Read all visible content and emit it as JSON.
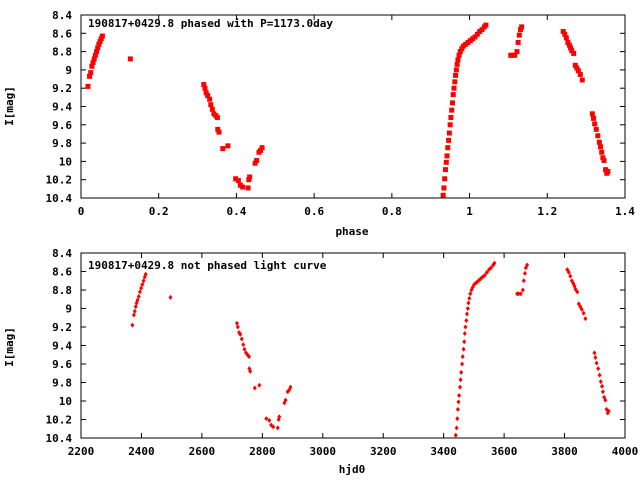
{
  "chart_data": [
    {
      "type": "scatter",
      "title": "190817+0429.8 phased with P=1173.0day",
      "xlabel": "phase",
      "ylabel": "I[mag]",
      "xlim": [
        0,
        1.4
      ],
      "ylim": [
        10.4,
        8.4
      ],
      "y_inverted": true,
      "grid": false,
      "marker_color": "#ff0000",
      "marker": "square",
      "x_ticks": [
        0,
        0.2,
        0.4,
        0.6,
        0.8,
        1,
        1.2,
        1.4
      ],
      "x_tick_labels": [
        "0",
        "0.2",
        "0.4",
        "0.6",
        "0.8",
        "1",
        "1.2",
        "1.4"
      ],
      "y_ticks": [
        8.4,
        8.6,
        8.8,
        9,
        9.2,
        9.4,
        9.6,
        9.8,
        10,
        10.2,
        10.4
      ],
      "y_tick_labels": [
        "8.4",
        "8.6",
        "8.8",
        "9",
        "9.2",
        "9.4",
        "9.6",
        "9.8",
        "10",
        "10.2",
        "10.4"
      ],
      "series": [
        {
          "points": [
            [
              0.018,
              9.18
            ],
            [
              0.022,
              9.07
            ],
            [
              0.025,
              9.03
            ],
            [
              0.028,
              8.96
            ],
            [
              0.031,
              8.92
            ],
            [
              0.034,
              8.88
            ],
            [
              0.037,
              8.84
            ],
            [
              0.04,
              8.8
            ],
            [
              0.043,
              8.76
            ],
            [
              0.046,
              8.72
            ],
            [
              0.049,
              8.69
            ],
            [
              0.052,
              8.66
            ],
            [
              0.055,
              8.63
            ],
            [
              0.127,
              8.88
            ],
            [
              0.316,
              9.16
            ],
            [
              0.319,
              9.2
            ],
            [
              0.322,
              9.25
            ],
            [
              0.326,
              9.28
            ],
            [
              0.331,
              9.32
            ],
            [
              0.334,
              9.38
            ],
            [
              0.338,
              9.43
            ],
            [
              0.342,
              9.48
            ],
            [
              0.347,
              9.5
            ],
            [
              0.351,
              9.52
            ],
            [
              0.352,
              9.65
            ],
            [
              0.355,
              9.68
            ],
            [
              0.365,
              9.86
            ],
            [
              0.378,
              9.83
            ],
            [
              0.398,
              10.19
            ],
            [
              0.405,
              10.21
            ],
            [
              0.41,
              10.26
            ],
            [
              0.416,
              10.28
            ],
            [
              0.43,
              10.29
            ],
            [
              0.432,
              10.2
            ],
            [
              0.434,
              10.17
            ],
            [
              0.448,
              10.02
            ],
            [
              0.452,
              9.99
            ],
            [
              0.458,
              9.9
            ],
            [
              0.462,
              9.88
            ],
            [
              0.466,
              9.85
            ],
            [
              0.932,
              10.37
            ],
            [
              0.934,
              10.29
            ],
            [
              0.936,
              10.19
            ],
            [
              0.938,
              10.09
            ],
            [
              0.94,
              10.01
            ],
            [
              0.942,
              9.94
            ],
            [
              0.944,
              9.85
            ],
            [
              0.946,
              9.77
            ],
            [
              0.948,
              9.69
            ],
            [
              0.95,
              9.6
            ],
            [
              0.952,
              9.52
            ],
            [
              0.954,
              9.44
            ],
            [
              0.956,
              9.36
            ],
            [
              0.958,
              9.27
            ],
            [
              0.96,
              9.2
            ],
            [
              0.962,
              9.13
            ],
            [
              0.964,
              9.06
            ],
            [
              0.966,
              9.0
            ],
            [
              0.968,
              8.94
            ],
            [
              0.97,
              8.89
            ],
            [
              0.973,
              8.84
            ],
            [
              0.976,
              8.8
            ],
            [
              0.98,
              8.77
            ],
            [
              0.984,
              8.74
            ],
            [
              0.99,
              8.72
            ],
            [
              0.996,
              8.7
            ],
            [
              1.002,
              8.68
            ],
            [
              1.008,
              8.66
            ],
            [
              1.014,
              8.64
            ],
            [
              1.02,
              8.61
            ],
            [
              1.026,
              8.58
            ],
            [
              1.032,
              8.56
            ],
            [
              1.038,
              8.53
            ],
            [
              1.042,
              8.51
            ],
            [
              1.106,
              8.84
            ],
            [
              1.11,
              8.84
            ],
            [
              1.116,
              8.84
            ],
            [
              1.122,
              8.8
            ],
            [
              1.125,
              8.7
            ],
            [
              1.128,
              8.62
            ],
            [
              1.131,
              8.56
            ],
            [
              1.134,
              8.53
            ],
            [
              1.241,
              8.58
            ],
            [
              1.245,
              8.61
            ],
            [
              1.249,
              8.65
            ],
            [
              1.253,
              8.7
            ],
            [
              1.257,
              8.73
            ],
            [
              1.26,
              8.76
            ],
            [
              1.263,
              8.79
            ],
            [
              1.268,
              8.82
            ],
            [
              1.272,
              8.95
            ],
            [
              1.276,
              8.98
            ],
            [
              1.28,
              9.01
            ],
            [
              1.285,
              9.05
            ],
            [
              1.29,
              9.11
            ],
            [
              1.316,
              9.48
            ],
            [
              1.319,
              9.53
            ],
            [
              1.322,
              9.59
            ],
            [
              1.326,
              9.65
            ],
            [
              1.33,
              9.72
            ],
            [
              1.334,
              9.79
            ],
            [
              1.337,
              9.84
            ],
            [
              1.34,
              9.9
            ],
            [
              1.343,
              9.96
            ],
            [
              1.346,
              9.99
            ],
            [
              1.35,
              10.09
            ],
            [
              1.353,
              10.13
            ],
            [
              1.356,
              10.11
            ]
          ]
        }
      ]
    },
    {
      "type": "scatter",
      "title": "190817+0429.8 not phased light curve",
      "xlabel": "hjd0",
      "ylabel": "I[mag]",
      "xlim": [
        2200,
        4000
      ],
      "ylim": [
        10.4,
        8.4
      ],
      "y_inverted": true,
      "grid": false,
      "marker_color": "#ff0000",
      "marker": "diamond",
      "x_ticks": [
        2200,
        2400,
        2600,
        2800,
        3000,
        3200,
        3400,
        3600,
        3800,
        4000
      ],
      "x_tick_labels": [
        "2200",
        "2400",
        "2600",
        "2800",
        "3000",
        "3200",
        "3400",
        "3600",
        "3800",
        "4000"
      ],
      "y_ticks": [
        8.4,
        8.6,
        8.8,
        9,
        9.2,
        9.4,
        9.6,
        9.8,
        10,
        10.2,
        10.4
      ],
      "y_tick_labels": [
        "8.4",
        "8.6",
        "8.8",
        "9",
        "9.2",
        "9.4",
        "9.6",
        "9.8",
        "10",
        "10.2",
        "10.4"
      ],
      "series": [
        {
          "points": [
            [
              2370,
              9.18
            ],
            [
              2375,
              9.07
            ],
            [
              2378,
              9.03
            ],
            [
              2381,
              8.98
            ],
            [
              2384,
              8.94
            ],
            [
              2387,
              8.91
            ],
            [
              2391,
              8.87
            ],
            [
              2395,
              8.82
            ],
            [
              2399,
              8.78
            ],
            [
              2403,
              8.74
            ],
            [
              2407,
              8.7
            ],
            [
              2411,
              8.66
            ],
            [
              2414,
              8.63
            ],
            [
              2496,
              8.88
            ],
            [
              2716,
              9.16
            ],
            [
              2719,
              9.2
            ],
            [
              2723,
              9.26
            ],
            [
              2727,
              9.28
            ],
            [
              2732,
              9.33
            ],
            [
              2737,
              9.39
            ],
            [
              2741,
              9.44
            ],
            [
              2746,
              9.48
            ],
            [
              2751,
              9.5
            ],
            [
              2756,
              9.52
            ],
            [
              2757,
              9.65
            ],
            [
              2760,
              9.68
            ],
            [
              2775,
              9.86
            ],
            [
              2790,
              9.83
            ],
            [
              2813,
              10.19
            ],
            [
              2823,
              10.21
            ],
            [
              2829,
              10.26
            ],
            [
              2836,
              10.28
            ],
            [
              2851,
              10.29
            ],
            [
              2854,
              10.2
            ],
            [
              2856,
              10.17
            ],
            [
              2873,
              10.02
            ],
            [
              2877,
              9.99
            ],
            [
              2884,
              9.9
            ],
            [
              2889,
              9.88
            ],
            [
              2893,
              9.85
            ],
            [
              3440,
              10.37
            ],
            [
              3443,
              10.29
            ],
            [
              3445,
              10.19
            ],
            [
              3447,
              10.09
            ],
            [
              3449,
              10.01
            ],
            [
              3451,
              9.94
            ],
            [
              3454,
              9.85
            ],
            [
              3456,
              9.77
            ],
            [
              3458,
              9.69
            ],
            [
              3461,
              9.6
            ],
            [
              3463,
              9.52
            ],
            [
              3466,
              9.44
            ],
            [
              3468,
              9.36
            ],
            [
              3470,
              9.27
            ],
            [
              3472,
              9.2
            ],
            [
              3475,
              9.13
            ],
            [
              3477,
              9.06
            ],
            [
              3480,
              9.0
            ],
            [
              3482,
              8.94
            ],
            [
              3485,
              8.89
            ],
            [
              3488,
              8.84
            ],
            [
              3492,
              8.8
            ],
            [
              3496,
              8.77
            ],
            [
              3501,
              8.74
            ],
            [
              3508,
              8.72
            ],
            [
              3515,
              8.7
            ],
            [
              3522,
              8.68
            ],
            [
              3529,
              8.66
            ],
            [
              3536,
              8.64
            ],
            [
              3543,
              8.61
            ],
            [
              3550,
              8.58
            ],
            [
              3557,
              8.56
            ],
            [
              3564,
              8.53
            ],
            [
              3568,
              8.51
            ],
            [
              3643,
              8.84
            ],
            [
              3648,
              8.84
            ],
            [
              3655,
              8.84
            ],
            [
              3662,
              8.8
            ],
            [
              3665,
              8.7
            ],
            [
              3669,
              8.62
            ],
            [
              3672,
              8.56
            ],
            [
              3676,
              8.53
            ],
            [
              3809,
              8.58
            ],
            [
              3814,
              8.61
            ],
            [
              3819,
              8.65
            ],
            [
              3824,
              8.7
            ],
            [
              3829,
              8.73
            ],
            [
              3833,
              8.76
            ],
            [
              3836,
              8.79
            ],
            [
              3842,
              8.82
            ],
            [
              3847,
              8.95
            ],
            [
              3852,
              8.98
            ],
            [
              3857,
              9.01
            ],
            [
              3863,
              9.05
            ],
            [
              3869,
              9.11
            ],
            [
              3899,
              9.48
            ],
            [
              3902,
              9.53
            ],
            [
              3906,
              9.59
            ],
            [
              3911,
              9.65
            ],
            [
              3916,
              9.72
            ],
            [
              3920,
              9.79
            ],
            [
              3924,
              9.84
            ],
            [
              3927,
              9.9
            ],
            [
              3931,
              9.96
            ],
            [
              3935,
              9.99
            ],
            [
              3939,
              10.09
            ],
            [
              3943,
              10.13
            ],
            [
              3946,
              10.11
            ]
          ]
        }
      ]
    }
  ]
}
